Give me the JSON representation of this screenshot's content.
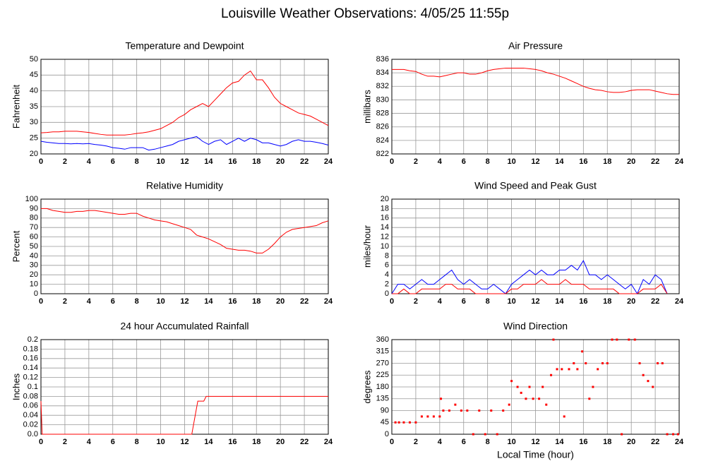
{
  "title": "Louisville Weather Observations: 4/05/25 11:55p",
  "chart_data": [
    {
      "type": "line",
      "title": "Temperature and Dewpoint",
      "y_label": "Fahrenheit",
      "xlim": [
        0,
        24
      ],
      "xticks": [
        0,
        2,
        4,
        6,
        8,
        10,
        12,
        14,
        16,
        18,
        20,
        22,
        24
      ],
      "ylim": [
        20,
        50
      ],
      "yticks": [
        20,
        25,
        30,
        35,
        40,
        45,
        50
      ],
      "grid": true,
      "x": [
        0,
        0.5,
        1,
        1.5,
        2,
        2.5,
        3,
        3.5,
        4,
        4.5,
        5,
        5.5,
        6,
        6.5,
        7,
        7.5,
        8,
        8.5,
        9,
        9.5,
        10,
        10.5,
        11,
        11.5,
        12,
        12.5,
        13,
        13.5,
        14,
        14.5,
        15,
        15.5,
        16,
        16.5,
        17,
        17.5,
        18,
        18.5,
        19,
        19.5,
        20,
        20.5,
        21,
        21.5,
        22,
        22.5,
        23,
        23.5,
        24
      ],
      "series": [
        {
          "color": "#ff0000",
          "values": [
            26.7,
            26.8,
            27,
            27,
            27.2,
            27.2,
            27.2,
            27,
            26.8,
            26.5,
            26.2,
            26,
            26,
            26,
            26,
            26.2,
            26.5,
            26.7,
            27,
            27.5,
            28,
            29,
            30,
            31.5,
            32.5,
            34,
            35,
            36,
            35,
            37,
            39,
            41,
            42.5,
            43,
            45,
            46.3,
            43.5,
            43.5,
            41,
            38,
            36,
            35,
            34,
            33,
            32.5,
            32,
            31,
            30,
            29
          ]
        },
        {
          "color": "#0000ff",
          "values": [
            24,
            23.7,
            23.5,
            23.3,
            23.3,
            23.2,
            23.3,
            23.2,
            23.3,
            23,
            22.8,
            22.5,
            22,
            21.8,
            21.5,
            22,
            22,
            22,
            21.2,
            21.5,
            22,
            22.5,
            23,
            24,
            24.5,
            25,
            25.5,
            24,
            23,
            24,
            24.5,
            23,
            24,
            25,
            24,
            25,
            24.5,
            23.5,
            23.5,
            23,
            22.5,
            23,
            24,
            24.5,
            24,
            24,
            23.7,
            23.3,
            22.8
          ]
        }
      ]
    },
    {
      "type": "line",
      "title": "Air Pressure",
      "y_label": "millibars",
      "xlim": [
        0,
        24
      ],
      "xticks": [
        0,
        2,
        4,
        6,
        8,
        10,
        12,
        14,
        16,
        18,
        20,
        22,
        24
      ],
      "ylim": [
        822,
        836
      ],
      "yticks": [
        822,
        824,
        826,
        828,
        830,
        832,
        834,
        836
      ],
      "grid": true,
      "x": [
        0,
        0.5,
        1,
        1.5,
        2,
        2.5,
        3,
        3.5,
        4,
        4.5,
        5,
        5.5,
        6,
        6.5,
        7,
        7.5,
        8,
        8.5,
        9,
        9.5,
        10,
        10.5,
        11,
        11.5,
        12,
        12.5,
        13,
        13.5,
        14,
        14.5,
        15,
        15.5,
        16,
        16.5,
        17,
        17.5,
        18,
        18.5,
        19,
        19.5,
        20,
        20.5,
        21,
        21.5,
        22,
        22.5,
        23,
        23.5,
        24
      ],
      "series": [
        {
          "color": "#ff0000",
          "values": [
            834.5,
            834.5,
            834.5,
            834.3,
            834.2,
            833.8,
            833.5,
            833.5,
            833.4,
            833.6,
            833.8,
            834,
            834,
            833.8,
            833.8,
            834,
            834.3,
            834.5,
            834.6,
            834.7,
            834.7,
            834.7,
            834.7,
            834.6,
            834.5,
            834.3,
            834,
            833.8,
            833.5,
            833.2,
            832.8,
            832.4,
            832,
            831.7,
            831.5,
            831.4,
            831.2,
            831.1,
            831.1,
            831.2,
            831.4,
            831.5,
            831.5,
            831.5,
            831.3,
            831.1,
            830.9,
            830.8,
            830.8
          ]
        }
      ]
    },
    {
      "type": "line",
      "title": "Relative Humidity",
      "y_label": "Percent",
      "xlim": [
        0,
        24
      ],
      "xticks": [
        0,
        2,
        4,
        6,
        8,
        10,
        12,
        14,
        16,
        18,
        20,
        22,
        24
      ],
      "ylim": [
        0,
        100
      ],
      "yticks": [
        0,
        10,
        20,
        30,
        40,
        50,
        60,
        70,
        80,
        90,
        100
      ],
      "grid": true,
      "x": [
        0,
        0.5,
        1,
        1.5,
        2,
        2.5,
        3,
        3.5,
        4,
        4.5,
        5,
        5.5,
        6,
        6.5,
        7,
        7.5,
        8,
        8.5,
        9,
        9.5,
        10,
        10.5,
        11,
        11.5,
        12,
        12.5,
        13,
        13.5,
        14,
        14.5,
        15,
        15.5,
        16,
        16.5,
        17,
        17.5,
        18,
        18.5,
        19,
        19.5,
        20,
        20.5,
        21,
        21.5,
        22,
        22.5,
        23,
        23.5,
        24
      ],
      "series": [
        {
          "color": "#ff0000",
          "values": [
            90,
            90,
            88,
            87,
            86,
            86,
            87,
            87,
            88,
            88,
            87,
            86,
            85,
            84,
            84,
            85,
            85,
            82,
            80,
            78,
            77,
            76,
            74,
            72,
            70,
            68,
            62,
            60,
            58,
            55,
            52,
            48,
            47,
            46,
            46,
            45,
            43,
            43,
            47,
            53,
            60,
            65,
            68,
            69,
            70,
            71,
            72,
            75,
            77
          ]
        }
      ]
    },
    {
      "type": "line",
      "title": "Wind Speed and Peak Gust",
      "y_label": "miles/hour",
      "xlim": [
        0,
        24
      ],
      "xticks": [
        0,
        2,
        4,
        6,
        8,
        10,
        12,
        14,
        16,
        18,
        20,
        22,
        24
      ],
      "ylim": [
        0,
        20
      ],
      "yticks": [
        0,
        2,
        4,
        6,
        8,
        10,
        12,
        14,
        16,
        18,
        20
      ],
      "grid": true,
      "x": [
        0,
        0.5,
        1,
        1.5,
        2,
        2.5,
        3,
        3.5,
        4,
        4.5,
        5,
        5.5,
        6,
        6.5,
        7,
        7.5,
        8,
        8.5,
        9,
        9.5,
        10,
        10.5,
        11,
        11.5,
        12,
        12.5,
        13,
        13.5,
        14,
        14.5,
        15,
        15.5,
        16,
        16.5,
        17,
        17.5,
        18,
        18.5,
        19,
        19.5,
        20,
        20.5,
        21,
        21.5,
        22,
        22.5,
        23,
        23.5,
        24
      ],
      "series": [
        {
          "color": "#0000ff",
          "values": [
            0,
            2,
            2,
            1,
            2,
            3,
            2,
            2,
            3,
            4,
            5,
            3,
            2,
            3,
            2,
            1,
            1,
            2,
            1,
            0,
            2,
            3,
            4,
            5,
            4,
            5,
            4,
            4,
            5,
            5,
            6,
            5,
            7,
            4,
            4,
            3,
            4,
            3,
            2,
            1,
            2,
            0,
            3,
            2,
            4,
            3,
            0,
            null,
            null
          ]
        },
        {
          "color": "#ff0000",
          "values": [
            0,
            0,
            1,
            0,
            0,
            1,
            1,
            1,
            1,
            2,
            2,
            1,
            1,
            1,
            0,
            0,
            0,
            0,
            0,
            0,
            1,
            1,
            2,
            2,
            2,
            3,
            2,
            2,
            2,
            3,
            2,
            2,
            2,
            1,
            1,
            1,
            1,
            1,
            0,
            0,
            0,
            0,
            1,
            1,
            1,
            2,
            0,
            null,
            null
          ]
        }
      ]
    },
    {
      "type": "line",
      "title": "24 hour Accumulated Rainfall",
      "y_label": "Inches",
      "xlim": [
        0,
        24
      ],
      "xticks": [
        0,
        2,
        4,
        6,
        8,
        10,
        12,
        14,
        16,
        18,
        20,
        22,
        24
      ],
      "ylim": [
        0,
        0.2
      ],
      "yticks": [
        {
          "value": 0,
          "label": "0.0"
        },
        0.02,
        0.04,
        0.06,
        0.08,
        0.1,
        0.12,
        0.14,
        0.16,
        0.18,
        0.2
      ],
      "grid": true,
      "x": [
        0,
        0.1,
        12.6,
        13.1,
        13.6,
        13.8,
        24
      ],
      "series": [
        {
          "color": "#ff0000",
          "values": [
            0.07,
            0,
            0,
            0.07,
            0.07,
            0.08,
            0.08
          ]
        }
      ]
    },
    {
      "type": "scatter",
      "title": "Wind Direction",
      "y_label": "degrees",
      "x_label": "Local Time (hour)",
      "xlim": [
        0,
        24
      ],
      "xticks": [
        0,
        2,
        4,
        6,
        8,
        10,
        12,
        14,
        16,
        18,
        20,
        22,
        24
      ],
      "ylim": [
        0,
        360
      ],
      "yticks": [
        0,
        45,
        90,
        135,
        180,
        225,
        270,
        315,
        360
      ],
      "grid": true,
      "color": "#ff0000",
      "x": [
        0.3,
        0.6,
        1,
        1.5,
        2,
        2.5,
        3,
        3.5,
        4,
        4.1,
        4.3,
        4.8,
        5.3,
        5.8,
        6.3,
        6.8,
        7.3,
        7.8,
        8.3,
        8.8,
        9.3,
        9.8,
        10,
        10.5,
        10.8,
        11.2,
        11.5,
        11.8,
        12.3,
        12.6,
        12.9,
        13.3,
        13.5,
        13.8,
        14.2,
        14.4,
        14.8,
        15.2,
        15.5,
        15.9,
        16.2,
        16.5,
        16.8,
        17.2,
        17.6,
        18,
        18.4,
        18.8,
        19.2,
        19.8,
        20.3,
        20.7,
        21,
        21.4,
        21.8,
        22.2,
        22.6,
        23,
        23.5,
        23.9
      ],
      "values": [
        45,
        45,
        45,
        45,
        45,
        67.5,
        67.5,
        67.5,
        67.5,
        135,
        90,
        90,
        112.5,
        90,
        90,
        0,
        90,
        0,
        90,
        0,
        90,
        112.5,
        202.5,
        180,
        157.5,
        135,
        180,
        135,
        135,
        180,
        112.5,
        225,
        360,
        247.5,
        247.5,
        67.5,
        247.5,
        270,
        247.5,
        315,
        270,
        135,
        180,
        247.5,
        270,
        270,
        360,
        360,
        0,
        360,
        360,
        270,
        225,
        202.5,
        180,
        270,
        270,
        0,
        0,
        0
      ]
    }
  ]
}
